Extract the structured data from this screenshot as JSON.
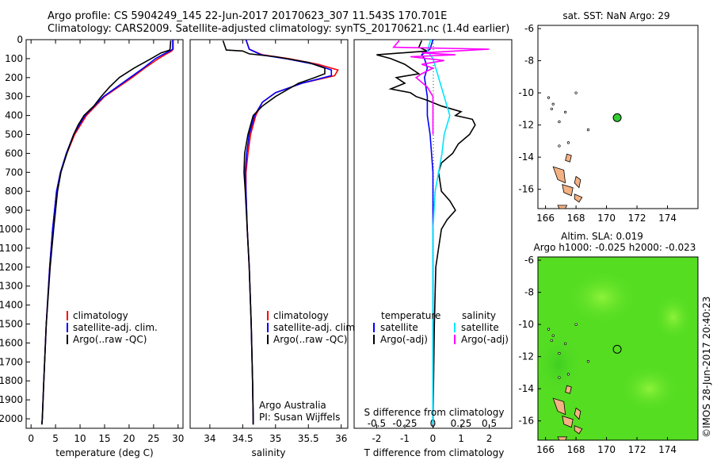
{
  "header": {
    "line1": "Argo profile: CS 5904249_145 22-Jun-2017 20170623_307 11.543S 170.701E",
    "line2": "Climatology: CARS2009. Satellite-adjusted climatology: synTS_20170621.nc (1.4d earlier)"
  },
  "colors": {
    "climatology": "#ff0000",
    "satellite": "#0000ff",
    "argo": "#000000",
    "sat_salinity": "#00e5ff",
    "argo_salinity": "#ff00ff",
    "land": "#f4b183",
    "float_marker": "#33cc33",
    "sla_field": "#55dd22"
  },
  "chart_data": [
    {
      "type": "line",
      "id": "temperature",
      "xlabel": "temperature (deg C)",
      "ylabel": "",
      "xlim": [
        -1,
        31
      ],
      "ylim": [
        2050,
        0
      ],
      "xticks": [
        0,
        5,
        10,
        15,
        20,
        25,
        30
      ],
      "yticks": [
        0,
        100,
        200,
        300,
        400,
        500,
        600,
        700,
        800,
        900,
        1000,
        1100,
        1200,
        1300,
        1400,
        1500,
        1600,
        1700,
        1800,
        1900,
        2000
      ],
      "legend": [
        "climatology",
        "satellite-adj. clim.",
        "Argo(..raw -QC)"
      ],
      "series": [
        {
          "name": "climatology",
          "color": "red",
          "depth": [
            0,
            50,
            60,
            80,
            100,
            150,
            200,
            250,
            300,
            400,
            500,
            600,
            700,
            800,
            1000,
            1200,
            1500,
            1800,
            2000,
            2030
          ],
          "values": [
            29.0,
            29.0,
            28.7,
            27.3,
            26.0,
            23.2,
            20.6,
            17.8,
            15.0,
            11.3,
            8.9,
            7.3,
            6.0,
            5.2,
            4.4,
            3.8,
            3.1,
            2.6,
            2.3,
            2.2
          ]
        },
        {
          "name": "satellite-adj. clim.",
          "color": "blue",
          "depth": [
            0,
            50,
            60,
            80,
            100,
            150,
            200,
            250,
            300,
            400,
            500,
            600,
            700,
            800,
            1000,
            1200,
            1500,
            1800,
            2000,
            2030
          ],
          "values": [
            28.9,
            28.9,
            28.3,
            26.8,
            25.4,
            22.9,
            20.2,
            17.5,
            14.8,
            11.0,
            8.7,
            7.2,
            6.0,
            5.2,
            4.4,
            3.8,
            3.1,
            2.6,
            2.3,
            2.2
          ]
        },
        {
          "name": "Argo(..raw -QC)",
          "color": "black",
          "depth": [
            5,
            40,
            55,
            70,
            100,
            150,
            200,
            250,
            300,
            350,
            400,
            450,
            500,
            550,
            600,
            700,
            800,
            1000,
            1200,
            1500,
            1800,
            2000,
            2030
          ],
          "values": [
            28.5,
            28.4,
            28.3,
            26.5,
            24.5,
            21.0,
            18.0,
            16.0,
            14.3,
            12.8,
            10.8,
            9.6,
            8.7,
            8.0,
            7.3,
            6.1,
            5.4,
            4.6,
            3.9,
            3.1,
            2.6,
            2.3,
            2.2
          ]
        }
      ]
    },
    {
      "type": "line",
      "id": "salinity",
      "xlabel": "salinity",
      "ylabel": "",
      "xlim": [
        33.7,
        36.1
      ],
      "ylim": [
        2050,
        0
      ],
      "xticks": [
        34,
        34.5,
        35,
        35.5,
        36
      ],
      "legend": [
        "climatology",
        "satellite-adj. clim.",
        "Argo(..raw -QC)"
      ],
      "annotations": [
        "Argo Australia",
        "PI: Susan Wijffels"
      ],
      "series": [
        {
          "name": "climatology",
          "color": "red",
          "depth": [
            0,
            50,
            80,
            100,
            130,
            160,
            190,
            230,
            280,
            330,
            400,
            500,
            600,
            700,
            800,
            1000,
            1200,
            1500,
            1800,
            2000,
            2030
          ],
          "values": [
            34.55,
            34.6,
            34.8,
            35.2,
            35.65,
            35.95,
            35.9,
            35.4,
            35.0,
            34.8,
            34.7,
            34.62,
            34.58,
            34.55,
            34.55,
            34.57,
            34.6,
            34.63,
            34.65,
            34.66,
            34.66
          ]
        },
        {
          "name": "satellite-adj. clim.",
          "color": "blue",
          "depth": [
            0,
            50,
            80,
            100,
            130,
            160,
            190,
            230,
            280,
            330,
            400,
            500,
            600,
            700,
            800,
            1000,
            1200,
            1500,
            1800,
            2000,
            2030
          ],
          "values": [
            34.55,
            34.6,
            34.78,
            35.15,
            35.6,
            35.85,
            35.85,
            35.4,
            35.0,
            34.8,
            34.68,
            34.6,
            34.56,
            34.54,
            34.55,
            34.57,
            34.6,
            34.63,
            34.65,
            34.66,
            34.66
          ]
        },
        {
          "name": "Argo(..raw -QC)",
          "color": "black",
          "depth": [
            5,
            55,
            60,
            75,
            90,
            120,
            150,
            180,
            200,
            230,
            260,
            300,
            350,
            400,
            500,
            600,
            700,
            800,
            1000,
            1200,
            1500,
            1800,
            2000,
            2030
          ],
          "values": [
            34.2,
            34.25,
            34.5,
            34.6,
            35.0,
            35.5,
            35.75,
            35.75,
            35.6,
            35.35,
            35.2,
            35.0,
            34.8,
            34.66,
            34.58,
            34.53,
            34.52,
            34.54,
            34.57,
            34.6,
            34.63,
            34.65,
            34.66,
            34.66
          ]
        }
      ]
    },
    {
      "type": "line",
      "id": "difference",
      "xlabel": "T difference from climatology",
      "xlabel_top": "S difference from climatology",
      "xlim": [
        -2.8,
        2.8
      ],
      "ylim": [
        2050,
        0
      ],
      "xticks_T": [
        -2,
        -1,
        0,
        1,
        2
      ],
      "xticks_S": [
        "-0.5",
        "-0.25",
        "0",
        "0.25",
        "0.5"
      ],
      "legend_headers": [
        "temperature",
        "salinity"
      ],
      "legend": [
        "satellite",
        "Argo(-adj)",
        "satellite",
        "Argo(-adj)"
      ],
      "series": [
        {
          "name": "satellite",
          "group": "temperature",
          "color": "blue",
          "depth": [
            0,
            50,
            80,
            100,
            150,
            200,
            300,
            400,
            500,
            700,
            1000,
            1500,
            2030
          ],
          "values": [
            0.0,
            -0.1,
            -0.4,
            -0.3,
            -0.2,
            -0.3,
            -0.2,
            -0.2,
            -0.1,
            0.0,
            0.0,
            0.0,
            0.0
          ]
        },
        {
          "name": "Argo(-adj)",
          "group": "temperature",
          "color": "black",
          "depth": [
            5,
            40,
            60,
            80,
            100,
            130,
            150,
            180,
            200,
            230,
            260,
            280,
            300,
            320,
            350,
            380,
            400,
            420,
            450,
            500,
            550,
            600,
            650,
            700,
            800,
            850,
            900,
            950,
            1000,
            1100,
            1200,
            1500,
            2030
          ],
          "values": [
            -0.4,
            -0.5,
            -0.2,
            -2.0,
            -1.5,
            -1.0,
            -0.8,
            -0.5,
            -1.3,
            -1.0,
            -1.5,
            -0.8,
            -0.6,
            -0.2,
            0.3,
            1.0,
            0.8,
            1.4,
            1.5,
            1.3,
            0.9,
            0.7,
            0.3,
            0.2,
            0.3,
            0.6,
            0.8,
            0.5,
            0.3,
            0.2,
            0.1,
            0.05,
            0.0
          ]
        },
        {
          "name": "satellite",
          "group": "salinity",
          "color": "cyan",
          "depth": [
            0,
            60,
            100,
            200,
            300,
            400,
            500,
            600,
            700,
            800,
            1000,
            1500,
            2030
          ],
          "values": [
            -0.02,
            -0.05,
            0.0,
            0.05,
            0.1,
            0.15,
            0.1,
            0.08,
            0.05,
            0.02,
            0.0,
            0.0,
            0.0
          ]
        },
        {
          "name": "Argo(-adj)",
          "group": "salinity",
          "color": "magenta",
          "depth": [
            5,
            40,
            50,
            60,
            70,
            80,
            90,
            110,
            130,
            150,
            180,
            200,
            250,
            300,
            400,
            500
          ],
          "values": [
            -0.3,
            -0.35,
            0.5,
            0.2,
            -0.1,
            0.2,
            -0.2,
            0.1,
            -0.1,
            0.0,
            -0.1,
            -0.15,
            -0.05,
            0.0,
            0.0,
            0.0
          ]
        }
      ]
    },
    {
      "type": "scatter",
      "id": "sst_map",
      "title": "sat. SST: NaN Argo: 29",
      "xlim": [
        165.5,
        176
      ],
      "ylim": [
        -17.2,
        -5.8
      ],
      "xticks": [
        166,
        168,
        170,
        172,
        174
      ],
      "yticks": [
        -6,
        -8,
        -10,
        -12,
        -14,
        -16
      ],
      "float_position": {
        "lon": 170.701,
        "lat": -11.543
      }
    },
    {
      "type": "heatmap",
      "id": "sla_map",
      "title_line1": "Altim. SLA: 0.019",
      "title_line2": "Argo h1000: -0.025 h2000: -0.023",
      "xlim": [
        165.5,
        176
      ],
      "ylim": [
        -17.2,
        -5.8
      ],
      "xticks": [
        166,
        168,
        170,
        172,
        174
      ],
      "yticks": [
        -6,
        -8,
        -10,
        -12,
        -14,
        -16
      ],
      "float_position": {
        "lon": 170.701,
        "lat": -11.543
      }
    }
  ],
  "footer": {
    "credit": "©IMOS 28-Jun-2017 20:40:23"
  }
}
